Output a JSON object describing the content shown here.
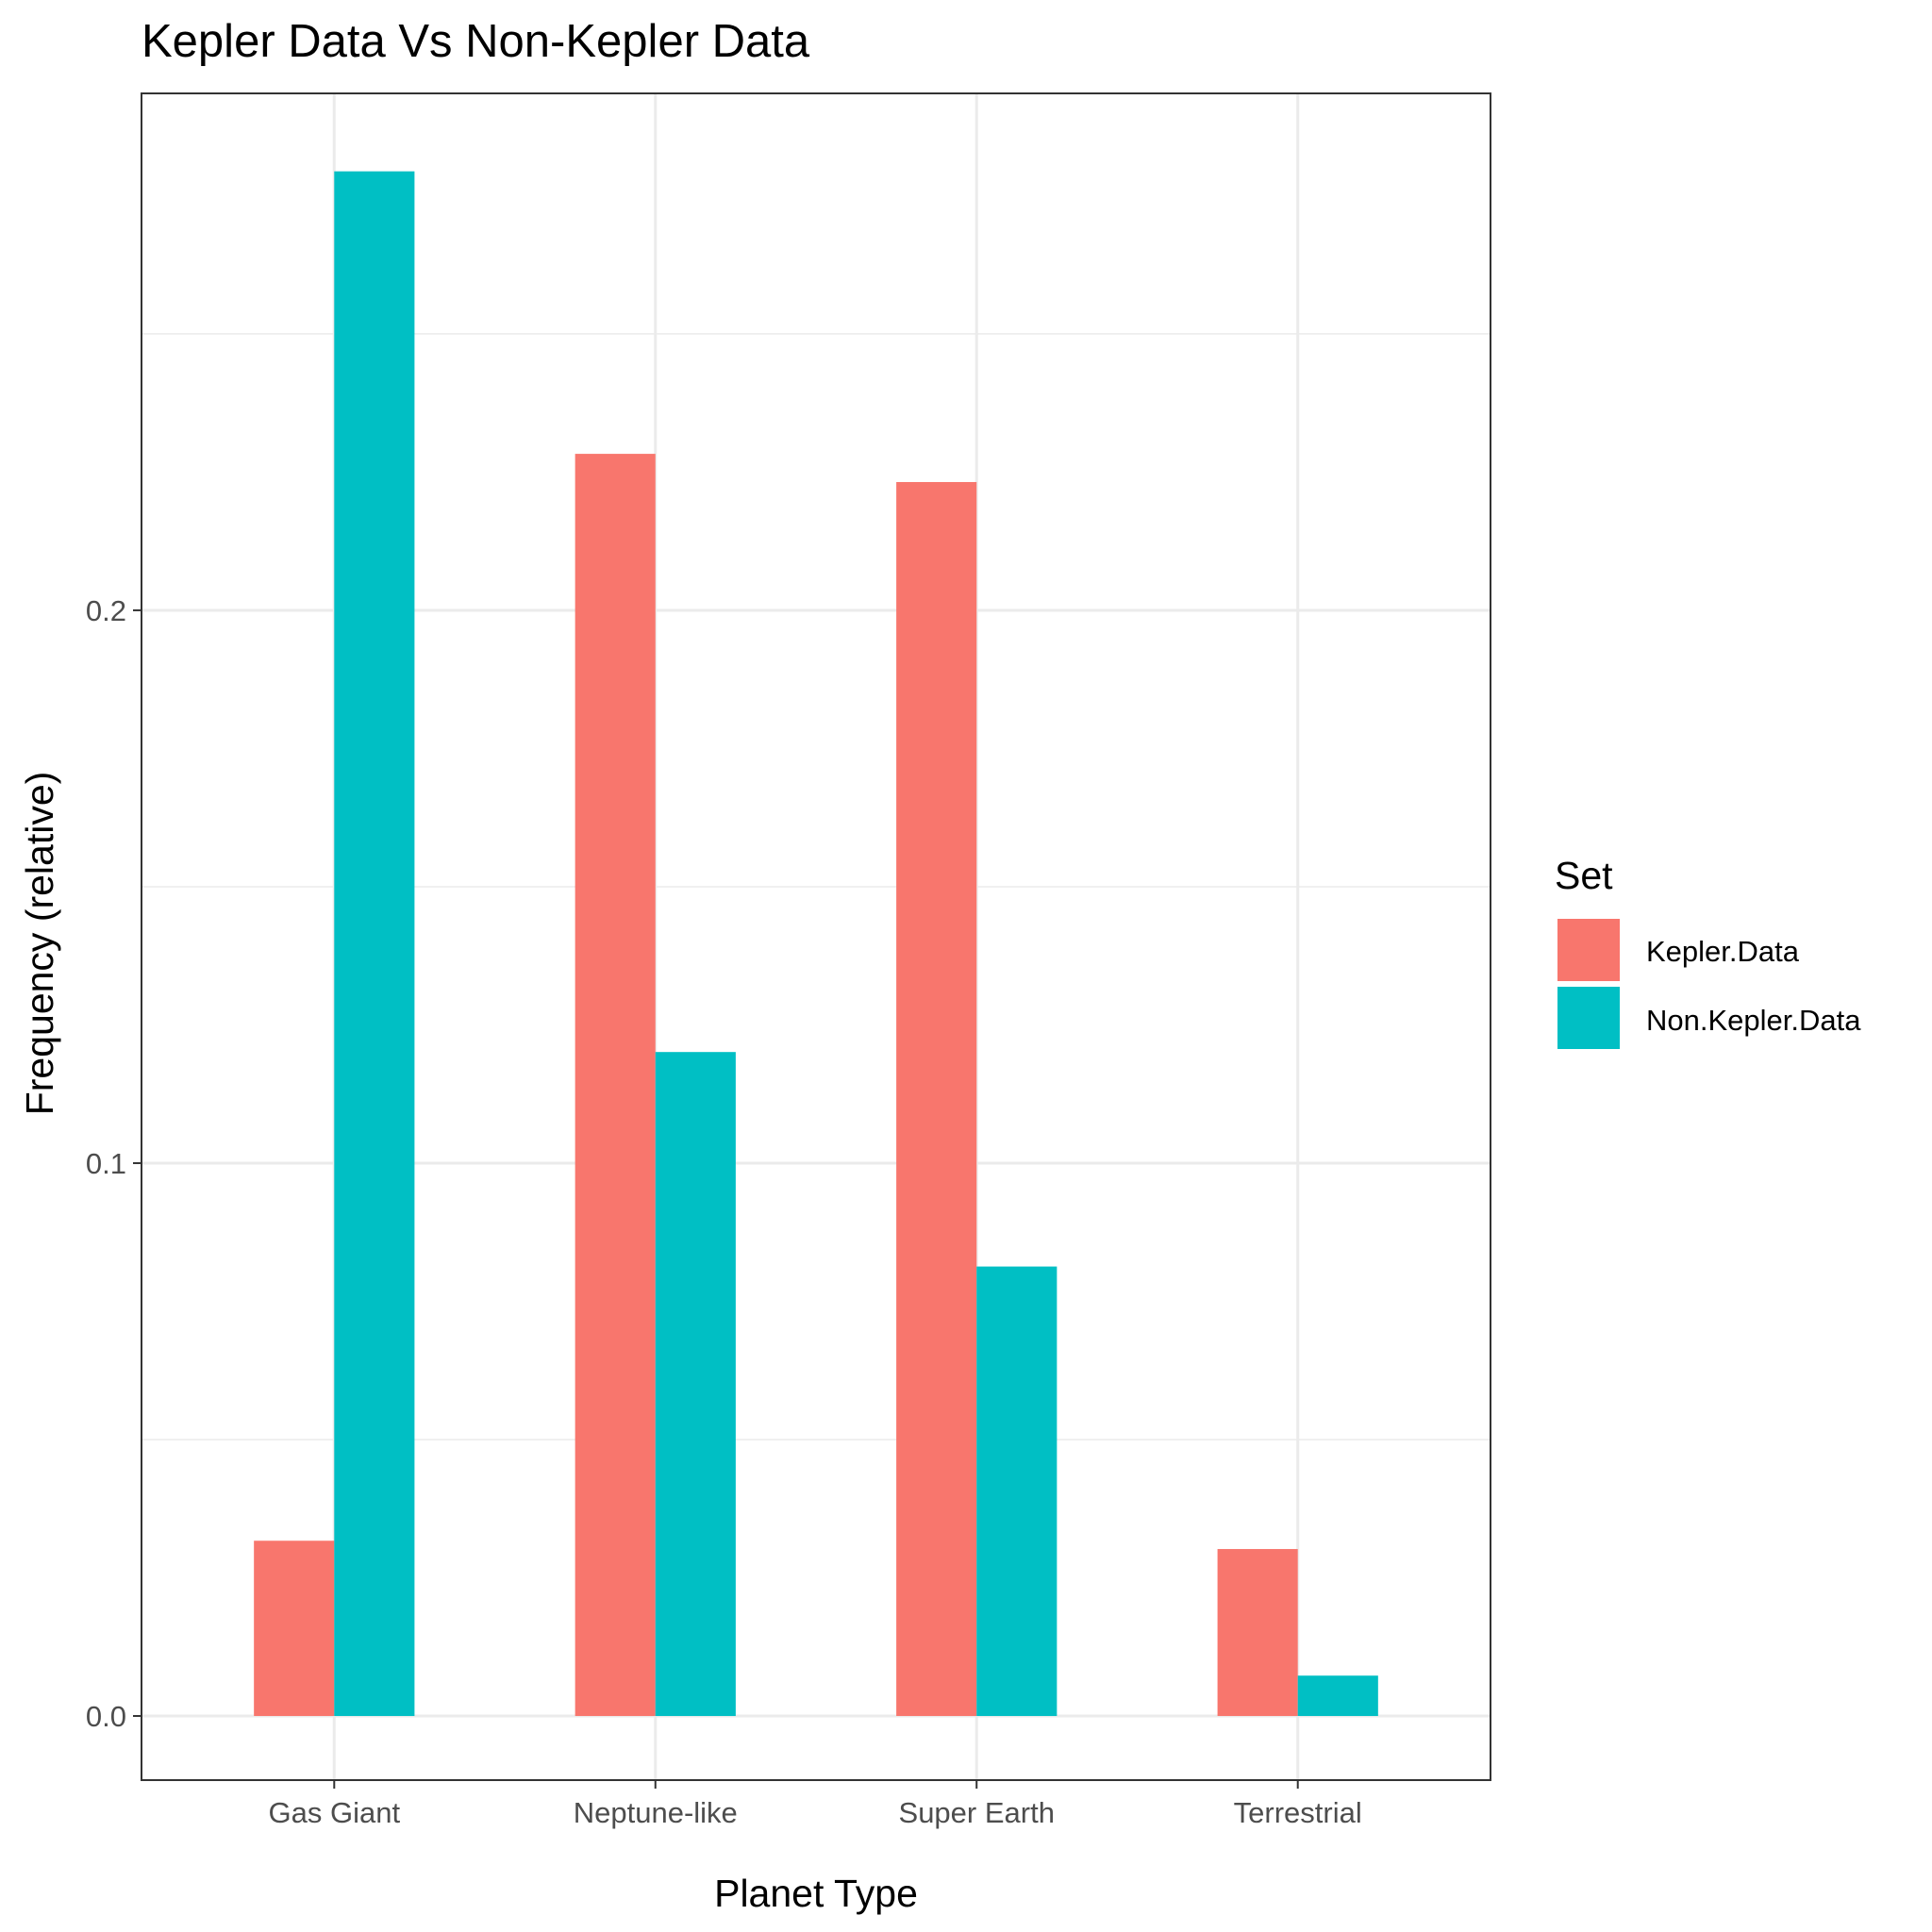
{
  "chart_data": {
    "type": "bar",
    "title": "Kepler Data Vs Non-Kepler Data",
    "xlabel": "Planet Type",
    "ylabel": "Frequency (relative)",
    "categories": [
      "Gas Giant",
      "Neptune-like",
      "Super Earth",
      "Terrestrial"
    ],
    "series": [
      {
        "name": "Kepler.Data",
        "color": "#F8766D",
        "values": [
          0.0317,
          0.2283,
          0.2232,
          0.0302
        ]
      },
      {
        "name": "Non.Kepler.Data",
        "color": "#00BFC4",
        "values": [
          0.2794,
          0.1201,
          0.0813,
          0.0073
        ]
      }
    ],
    "ylim": [
      -0.0116,
      0.2935
    ],
    "yticks": [
      0.0,
      0.1,
      0.2
    ],
    "ytick_labels": [
      "0.0",
      "0.1",
      "0.2"
    ],
    "grid": true,
    "legend": {
      "title": "Set",
      "position": "right"
    }
  }
}
